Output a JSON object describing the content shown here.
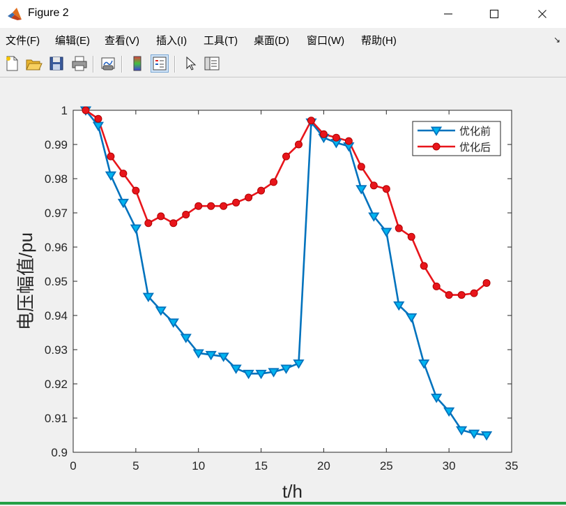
{
  "window": {
    "title": "Figure 2",
    "controls": {
      "minimize": "—",
      "maximize": "☐",
      "close": "✕"
    }
  },
  "menu": {
    "items": [
      "文件(F)",
      "编辑(E)",
      "查看(V)",
      "插入(I)",
      "工具(T)",
      "桌面(D)",
      "窗口(W)",
      "帮助(H)"
    ],
    "overflow_glyph": "↘"
  },
  "toolbar": {
    "buttons": [
      "new-figure-icon",
      "open-file-icon",
      "save-icon",
      "print-icon",
      "link-plot-icon",
      "colorbar-icon",
      "legend-icon",
      "pointer-icon",
      "property-inspector-icon"
    ]
  },
  "colors": {
    "series1": "#0072bd",
    "series1_marker": "#00b4f0",
    "series2": "#e8151b",
    "accent_bottom": "#24a046"
  },
  "chart_data": {
    "type": "line",
    "title": "",
    "xlabel": "t/h",
    "ylabel": "电压幅值/pu",
    "xlim": [
      0,
      35
    ],
    "ylim": [
      0.9,
      1.0
    ],
    "xticks": [
      0,
      5,
      10,
      15,
      20,
      25,
      30,
      35
    ],
    "yticks": [
      0.9,
      0.91,
      0.92,
      0.93,
      0.94,
      0.95,
      0.96,
      0.97,
      0.98,
      0.99,
      1
    ],
    "xtick_labels": [
      "0",
      "5",
      "10",
      "15",
      "20",
      "25",
      "30",
      "35"
    ],
    "ytick_labels": [
      "0.9",
      "0.91",
      "0.92",
      "0.93",
      "0.94",
      "0.95",
      "0.96",
      "0.97",
      "0.98",
      "0.99",
      "1"
    ],
    "grid": false,
    "legend_position": "top-right",
    "x": [
      1,
      2,
      3,
      4,
      5,
      6,
      7,
      8,
      9,
      10,
      11,
      12,
      13,
      14,
      15,
      16,
      17,
      18,
      19,
      20,
      21,
      22,
      23,
      24,
      25,
      26,
      27,
      28,
      29,
      30,
      31,
      32,
      33
    ],
    "series": [
      {
        "name": "优化前",
        "marker": "triangle-down",
        "values": [
          1.0,
          0.9955,
          0.981,
          0.973,
          0.9655,
          0.9455,
          0.9415,
          0.938,
          0.9335,
          0.929,
          0.9285,
          0.928,
          0.9245,
          0.923,
          0.923,
          0.9235,
          0.9245,
          0.926,
          0.9965,
          0.992,
          0.9905,
          0.9895,
          0.977,
          0.969,
          0.9645,
          0.943,
          0.9395,
          0.926,
          0.916,
          0.912,
          0.9065,
          0.9055,
          0.905
        ]
      },
      {
        "name": "优化后",
        "marker": "circle",
        "values": [
          1.0,
          0.9975,
          0.9865,
          0.9815,
          0.9765,
          0.967,
          0.969,
          0.967,
          0.9695,
          0.972,
          0.972,
          0.972,
          0.973,
          0.9745,
          0.9765,
          0.979,
          0.9865,
          0.99,
          0.997,
          0.993,
          0.992,
          0.991,
          0.9835,
          0.978,
          0.977,
          0.9655,
          0.963,
          0.9545,
          0.9485,
          0.946,
          0.946,
          0.9465,
          0.9495
        ]
      }
    ]
  }
}
